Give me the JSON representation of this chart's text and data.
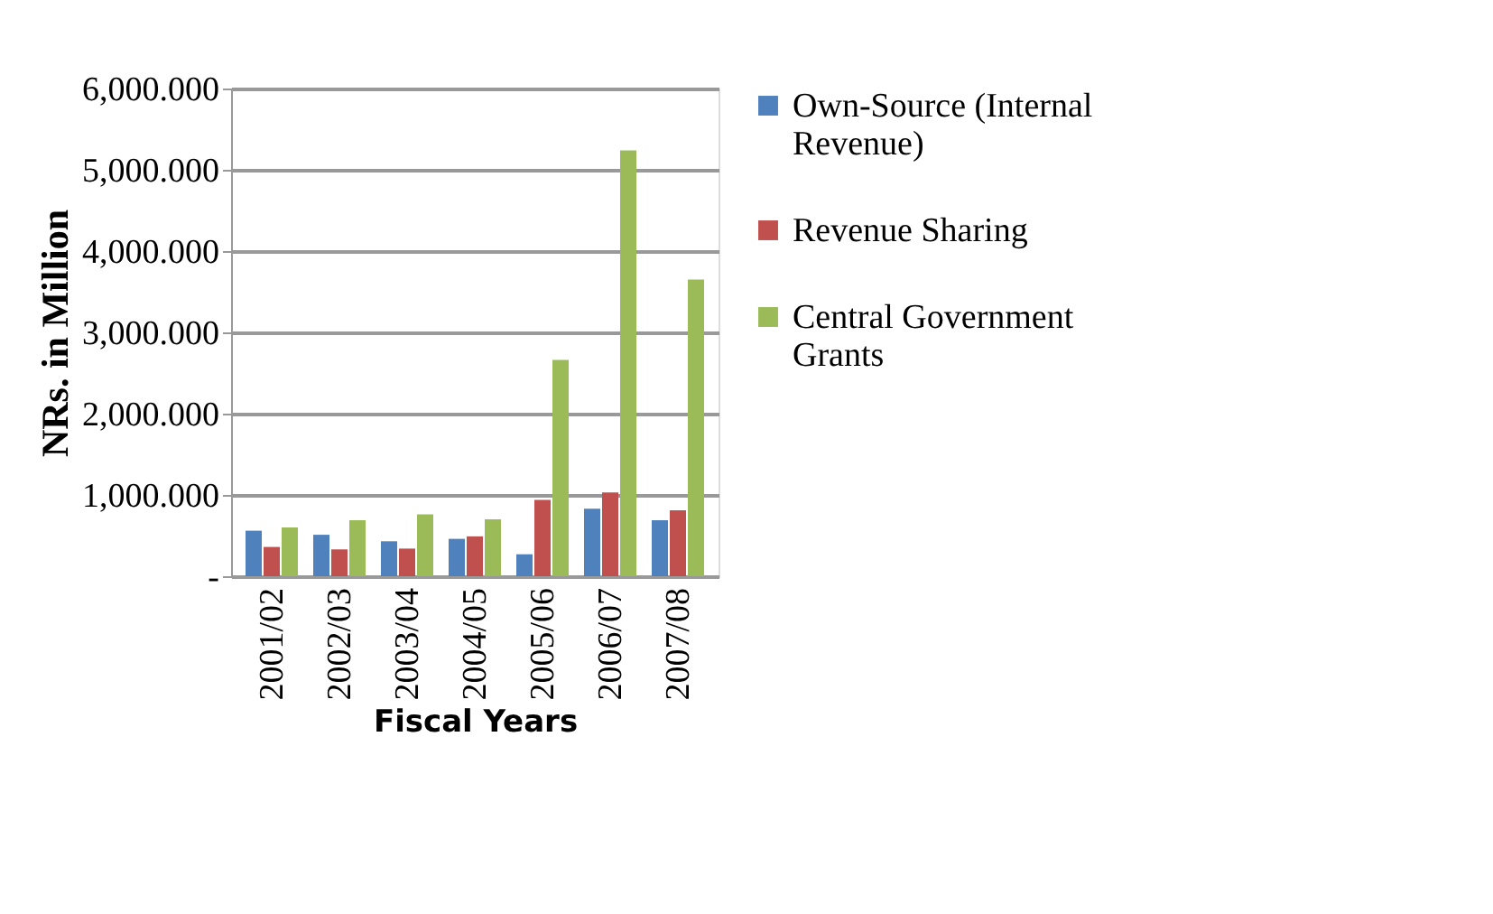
{
  "chart_data": {
    "type": "bar",
    "xlabel": "Fiscal Years",
    "ylabel": "NRs. in Million",
    "categories": [
      "2001/02",
      "2002/03",
      "2003/04",
      "2004/05",
      "2005/06",
      "2006/07",
      "2007/08"
    ],
    "series": [
      {
        "name": "Own-Source (Internal Revenue)",
        "color": "#4f81bd",
        "values": [
          560,
          510,
          430,
          460,
          270,
          830,
          690
        ]
      },
      {
        "name": "Revenue Sharing",
        "color": "#c0504d",
        "values": [
          360,
          330,
          340,
          490,
          940,
          1030,
          810
        ]
      },
      {
        "name": "Central Government Grants",
        "color": "#9bbb59",
        "values": [
          600,
          690,
          760,
          700,
          2660,
          5240,
          3650
        ]
      }
    ],
    "ylim": [
      0,
      6000
    ],
    "yticks": [
      {
        "value": 0,
        "label": "-"
      },
      {
        "value": 1000,
        "label": "1,000.000"
      },
      {
        "value": 2000,
        "label": "2,000.000"
      },
      {
        "value": 3000,
        "label": "3,000.000"
      },
      {
        "value": 4000,
        "label": "4,000.000"
      },
      {
        "value": 5000,
        "label": "5,000.000"
      },
      {
        "value": 6000,
        "label": "6,000.000"
      }
    ],
    "grid": "y",
    "legend": "right"
  }
}
